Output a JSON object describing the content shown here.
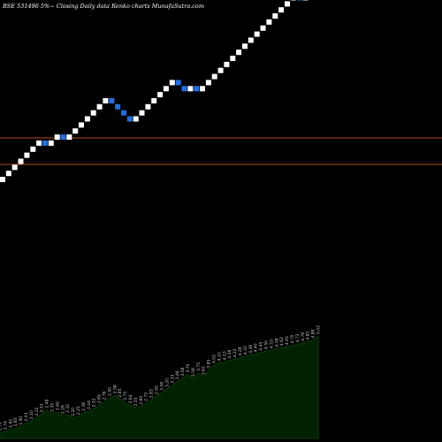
{
  "header": "BSE 531496  5%~  Closing Daily data  Renko  charts MunafaSutra.com",
  "colors": {
    "background": "#000000",
    "up_brick": "#ffffff",
    "down_brick": "#1f6fe6",
    "hline": "#b34a1e",
    "volume_fill": "#002200",
    "volume_stroke": "#0a3a0a",
    "label": "#cccccc"
  },
  "chart_data": {
    "type": "renko",
    "brick_direction": [
      1,
      1,
      1,
      1,
      1,
      1,
      1,
      -1,
      1,
      1,
      -1,
      1,
      1,
      1,
      1,
      1,
      1,
      1,
      -1,
      -1,
      -1,
      -1,
      1,
      1,
      1,
      1,
      1,
      1,
      1,
      -1,
      -1,
      1,
      -1,
      1,
      1,
      1,
      1,
      1,
      1,
      1,
      1,
      1,
      1,
      1,
      1,
      1,
      1,
      1,
      1,
      -1,
      1,
      1
    ],
    "horizontal_lines": [
      "upper",
      "lower"
    ],
    "volume_labels": [
      "1.70",
      "1.74",
      "1.81",
      "1.85",
      "1.90",
      "2.03",
      "2.10",
      "2.21",
      "2.33",
      "2.48",
      "2.35",
      "2.40",
      "2.28",
      "2.32",
      "2.20",
      "2.25",
      "2.38",
      "2.44",
      "2.52",
      "2.65",
      "2.76",
      "2.90",
      "2.98",
      "2.85",
      "2.75",
      "2.64",
      "2.55",
      "2.60",
      "2.72",
      "2.83",
      "2.95",
      "3.08",
      "3.20",
      "3.33",
      "3.46",
      "3.58",
      "3.70",
      "3.56",
      "3.75",
      "3.62",
      "3.85",
      "4.02",
      "4.10",
      "4.13",
      "4.18",
      "4.22",
      "4.28",
      "4.32",
      "4.36",
      "4.40",
      "4.45",
      "4.50",
      "4.53",
      "4.58",
      "4.62",
      "4.65",
      "4.70",
      "4.73",
      "4.78",
      "4.82",
      "4.88",
      "5.02"
    ],
    "volume_values": [
      1.7,
      1.74,
      1.81,
      1.85,
      1.9,
      2.03,
      2.1,
      2.21,
      2.33,
      2.48,
      2.35,
      2.4,
      2.28,
      2.32,
      2.2,
      2.25,
      2.38,
      2.44,
      2.52,
      2.65,
      2.76,
      2.9,
      2.98,
      2.85,
      2.75,
      2.64,
      2.55,
      2.6,
      2.72,
      2.83,
      2.95,
      3.08,
      3.2,
      3.33,
      3.46,
      3.58,
      3.7,
      3.56,
      3.75,
      3.62,
      3.85,
      4.02,
      4.1,
      4.13,
      4.18,
      4.22,
      4.28,
      4.32,
      4.36,
      4.4,
      4.45,
      4.5,
      4.53,
      4.58,
      4.62,
      4.65,
      4.7,
      4.73,
      4.78,
      4.82,
      4.88,
      5.02
    ]
  }
}
